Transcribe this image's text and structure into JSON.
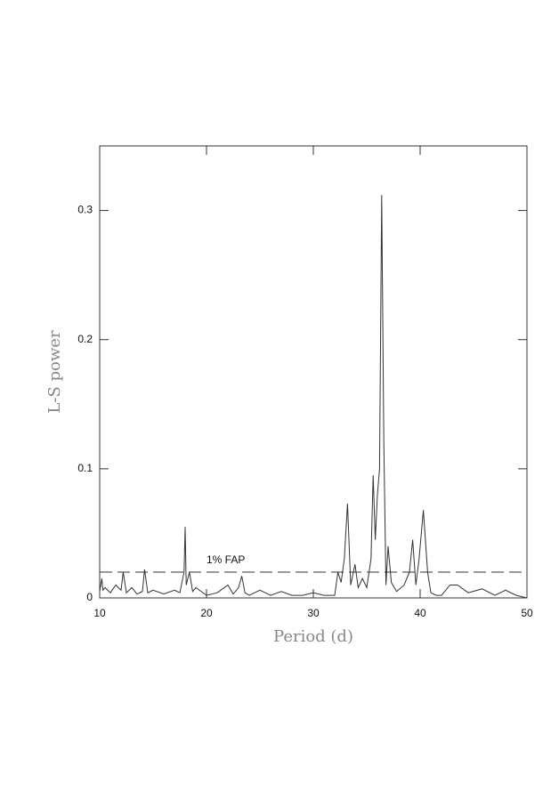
{
  "chart_data": {
    "type": "line",
    "xlabel": "Period (d)",
    "ylabel": "L-S power",
    "x": [
      10,
      10.2,
      10.3,
      10.5,
      11,
      11.5,
      12,
      12.2,
      12.5,
      13,
      13.5,
      14,
      14.2,
      14.5,
      15,
      16,
      17,
      17.5,
      17.9,
      18.0,
      18.1,
      18.4,
      18.7,
      19,
      20,
      21,
      22,
      22.5,
      23,
      23.3,
      23.6,
      24,
      25,
      26,
      27,
      28,
      29,
      30,
      31,
      32,
      32.3,
      32.6,
      32.9,
      33.2,
      33.5,
      33.9,
      34.2,
      34.6,
      35,
      35.4,
      35.6,
      35.8,
      36.0,
      36.2,
      36.4,
      36.6,
      36.8,
      37.0,
      37.3,
      37.8,
      38.5,
      39,
      39.3,
      39.6,
      39.9,
      40.3,
      40.7,
      41,
      41.5,
      42,
      42.8,
      43.5,
      44.5,
      45.8,
      47,
      48,
      49,
      50
    ],
    "series": [
      {
        "color": "#333333",
        "values": [
          0.005,
          0.015,
          0.006,
          0.008,
          0.004,
          0.01,
          0.006,
          0.02,
          0.004,
          0.008,
          0.003,
          0.005,
          0.022,
          0.004,
          0.006,
          0.003,
          0.006,
          0.004,
          0.02,
          0.055,
          0.01,
          0.02,
          0.005,
          0.008,
          0.002,
          0.004,
          0.01,
          0.003,
          0.008,
          0.017,
          0.004,
          0.002,
          0.006,
          0.002,
          0.005,
          0.002,
          0.002,
          0.004,
          0.002,
          0.002,
          0.02,
          0.012,
          0.03,
          0.073,
          0.01,
          0.026,
          0.008,
          0.015,
          0.008,
          0.03,
          0.095,
          0.045,
          0.08,
          0.1,
          0.312,
          0.12,
          0.01,
          0.04,
          0.012,
          0.005,
          0.01,
          0.02,
          0.045,
          0.01,
          0.03,
          0.068,
          0.02,
          0.004,
          0.002,
          0.002,
          0.01,
          0.01,
          0.004,
          0.007,
          0.002,
          0.006,
          0.002,
          0
        ]
      }
    ],
    "xlim": [
      10,
      50
    ],
    "xticks": [
      10,
      20,
      30,
      40,
      50
    ],
    "ylim": [
      0,
      0.35
    ],
    "yticks": [
      0,
      0.1,
      0.2,
      0.3
    ],
    "threshold": {
      "value": 0.02,
      "label": "1% FAP"
    }
  }
}
